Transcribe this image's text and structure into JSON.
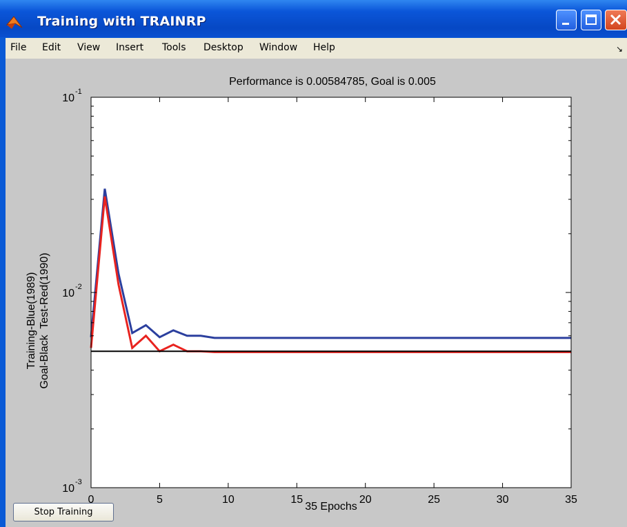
{
  "window": {
    "title": "Training with TRAINRP",
    "app_icon": "matlab-icon",
    "controls": [
      "minimize-icon",
      "maximize-icon",
      "close-icon"
    ]
  },
  "menu": {
    "items": [
      "File",
      "Edit",
      "View",
      "Insert",
      "Tools",
      "Desktop",
      "Window",
      "Help"
    ],
    "dock_icon": "dock-arrow-icon"
  },
  "stop_button": "Stop Training",
  "colors": {
    "titlebar": "#0b56d9",
    "training": "#2b3f9e",
    "test": "#e8231f",
    "goal": "#000000",
    "figure_bg": "#c8c8c8"
  },
  "chart_data": {
    "type": "line",
    "title": "Performance is 0.00584785, Goal is 0.005",
    "xlabel": "35 Epochs",
    "ylabel": [
      "Training-Blue(1989)",
      "Goal-Black  Test-Red(1990)"
    ],
    "xlim": [
      0,
      35
    ],
    "ylim": [
      0.001,
      0.1
    ],
    "yscale": "log",
    "xticks": [
      0,
      5,
      10,
      15,
      20,
      25,
      30,
      35
    ],
    "xtick_labels": [
      "0",
      "5",
      "10",
      "15",
      "20",
      "25",
      "30",
      "35"
    ],
    "yticks": [
      0.001,
      0.01,
      0.1
    ],
    "ytick_labels": [
      {
        "base": "10",
        "exp": "-3"
      },
      {
        "base": "10",
        "exp": "-2"
      },
      {
        "base": "10",
        "exp": "-1"
      }
    ],
    "grid": false,
    "series": [
      {
        "color": "blue",
        "x": [
          0,
          1,
          2,
          3,
          4,
          5,
          6,
          7,
          8,
          9,
          10,
          11,
          12,
          13,
          14,
          15,
          16,
          17,
          18,
          19,
          20,
          21,
          22,
          23,
          24,
          25,
          26,
          27,
          28,
          29,
          30,
          31,
          32,
          33,
          34,
          35
        ],
        "y": [
          0.0059,
          0.034,
          0.0125,
          0.0062,
          0.0068,
          0.0059,
          0.0064,
          0.006,
          0.006,
          0.00585,
          0.00585,
          0.00585,
          0.00585,
          0.00585,
          0.00585,
          0.00585,
          0.00585,
          0.00585,
          0.00585,
          0.00585,
          0.00585,
          0.00585,
          0.00585,
          0.00585,
          0.00585,
          0.00585,
          0.00585,
          0.00585,
          0.00585,
          0.00585,
          0.00585,
          0.00585,
          0.00585,
          0.00585,
          0.00585,
          0.00585
        ]
      },
      {
        "color": "red",
        "x": [
          0,
          1,
          2,
          3,
          4,
          5,
          6,
          7,
          8,
          9,
          10,
          11,
          12,
          13,
          14,
          15,
          16,
          17,
          18,
          19,
          20,
          21,
          22,
          23,
          24,
          25,
          26,
          27,
          28,
          29,
          30,
          31,
          32,
          33,
          34,
          35
        ],
        "y": [
          0.0052,
          0.031,
          0.011,
          0.0052,
          0.006,
          0.005,
          0.0054,
          0.005,
          0.005,
          0.00495,
          0.00495,
          0.00495,
          0.00495,
          0.00495,
          0.00495,
          0.00495,
          0.00495,
          0.00495,
          0.00495,
          0.00495,
          0.00495,
          0.00495,
          0.00495,
          0.00495,
          0.00495,
          0.00495,
          0.00495,
          0.00495,
          0.00495,
          0.00495,
          0.00495,
          0.00495,
          0.00495,
          0.00495,
          0.00495,
          0.00495
        ]
      },
      {
        "color": "black",
        "x": [
          0,
          35
        ],
        "y": [
          0.005,
          0.005
        ]
      }
    ]
  }
}
